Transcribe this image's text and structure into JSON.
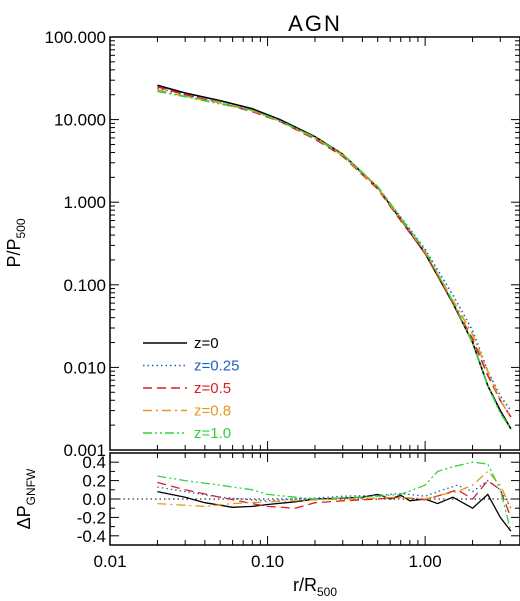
{
  "chart_data": {
    "type": "line",
    "title": "AGN",
    "xlabel": "r/R",
    "xlabel_sub": "500",
    "x_scale": "log",
    "xlim": [
      0.01,
      4.0
    ],
    "x_ticks": [
      {
        "value": 0.01,
        "label": "0.01"
      },
      {
        "value": 0.1,
        "label": "0.10"
      },
      {
        "value": 1.0,
        "label": "1.00"
      }
    ],
    "panels": [
      {
        "id": "main",
        "ylabel": "P/P",
        "ylabel_sub": "500",
        "y_scale": "log",
        "ylim": [
          0.001,
          100
        ],
        "y_ticks": [
          {
            "value": 100,
            "label": "100.000"
          },
          {
            "value": 10,
            "label": "10.000"
          },
          {
            "value": 1,
            "label": "1.000"
          },
          {
            "value": 0.1,
            "label": "0.100"
          },
          {
            "value": 0.01,
            "label": "0.010"
          },
          {
            "value": 0.001,
            "label": "0.001"
          }
        ]
      },
      {
        "id": "residual",
        "ylabel": "ΔP",
        "ylabel_sub": "GNFW",
        "y_scale": "linear",
        "ylim": [
          -0.5,
          0.5
        ],
        "reference_line": 0.0,
        "y_ticks": [
          {
            "value": 0.4,
            "label": "0.4"
          },
          {
            "value": 0.2,
            "label": "0.2"
          },
          {
            "value": 0.0,
            "label": "0.0"
          },
          {
            "value": -0.2,
            "label": "-0.2"
          },
          {
            "value": -0.4,
            "label": "-0.4"
          }
        ]
      }
    ],
    "legend": {
      "placement": "lower-left of main panel"
    },
    "series": [
      {
        "name": "z=0",
        "color": "#000000",
        "dash": "solid",
        "x": [
          0.02,
          0.03,
          0.05,
          0.08,
          0.12,
          0.2,
          0.3,
          0.5,
          0.7,
          1.0,
          1.5,
          2.0,
          2.5,
          3.0,
          3.5
        ],
        "y": [
          26,
          21,
          17,
          13.5,
          10,
          6.2,
          3.8,
          1.5,
          0.62,
          0.24,
          0.06,
          0.02,
          0.006,
          0.003,
          0.0018
        ],
        "residual_x": [
          0.02,
          0.03,
          0.04,
          0.06,
          0.08,
          0.1,
          0.15,
          0.2,
          0.3,
          0.4,
          0.5,
          0.6,
          0.7,
          0.8,
          1.0,
          1.2,
          1.5,
          2.0,
          2.5,
          3.0,
          3.5
        ],
        "residual_y": [
          0.08,
          0.02,
          -0.04,
          -0.09,
          -0.08,
          -0.06,
          -0.03,
          0.0,
          0.01,
          0.02,
          0.05,
          0.0,
          0.04,
          -0.02,
          0.0,
          -0.05,
          0.02,
          -0.1,
          0.05,
          -0.2,
          -0.35
        ]
      },
      {
        "name": "z=0.25",
        "color": "#1f5fc4",
        "dash": "dotted",
        "x": [
          0.02,
          0.03,
          0.05,
          0.08,
          0.12,
          0.2,
          0.3,
          0.5,
          0.7,
          1.0,
          1.5,
          2.0,
          2.5,
          3.0,
          3.5
        ],
        "y": [
          24,
          20,
          16.5,
          13,
          9.8,
          6.0,
          3.7,
          1.5,
          0.66,
          0.27,
          0.075,
          0.028,
          0.009,
          0.0045,
          0.003
        ],
        "residual_x": [
          0.02,
          0.03,
          0.05,
          0.08,
          0.1,
          0.15,
          0.2,
          0.3,
          0.5,
          0.7,
          1.0,
          1.3,
          1.6,
          2.0,
          2.5,
          3.0,
          3.5
        ],
        "residual_y": [
          0.13,
          0.08,
          0.02,
          -0.01,
          -0.02,
          0.0,
          0.01,
          0.03,
          0.04,
          0.06,
          0.03,
          0.1,
          0.15,
          0.08,
          0.2,
          0.1,
          -0.1
        ]
      },
      {
        "name": "z=0.5",
        "color": "#d62020",
        "dash": "dashed",
        "x": [
          0.02,
          0.03,
          0.05,
          0.08,
          0.12,
          0.2,
          0.3,
          0.5,
          0.7,
          1.0,
          1.5,
          2.0,
          2.5,
          3.0,
          3.5
        ],
        "y": [
          25,
          20,
          16,
          12.5,
          9.5,
          5.8,
          3.6,
          1.45,
          0.6,
          0.24,
          0.06,
          0.022,
          0.008,
          0.004,
          0.0025
        ],
        "residual_x": [
          0.02,
          0.03,
          0.05,
          0.08,
          0.1,
          0.15,
          0.2,
          0.3,
          0.5,
          0.7,
          1.0,
          1.3,
          1.6,
          2.0,
          2.5,
          3.0,
          3.5
        ],
        "residual_y": [
          0.18,
          0.1,
          0.02,
          -0.05,
          -0.08,
          -0.1,
          -0.04,
          -0.02,
          0.0,
          0.02,
          -0.01,
          0.05,
          0.1,
          0.0,
          0.2,
          0.1,
          -0.2
        ]
      },
      {
        "name": "z=0.8",
        "color": "#e39a1a",
        "dash": "dashdot",
        "x": [
          0.02,
          0.03,
          0.05,
          0.08,
          0.12,
          0.2,
          0.3,
          0.5,
          0.7,
          1.0,
          1.5,
          2.0,
          2.5,
          3.0,
          3.5
        ],
        "y": [
          23,
          19,
          16,
          12.8,
          9.6,
          6.0,
          3.7,
          1.5,
          0.63,
          0.25,
          0.065,
          0.025,
          0.009,
          0.004,
          0.0025
        ],
        "residual_x": [
          0.02,
          0.04,
          0.06,
          0.1,
          0.15,
          0.2,
          0.3,
          0.5,
          0.7,
          1.0,
          1.3,
          1.6,
          2.0,
          2.5,
          3.0,
          3.5
        ],
        "residual_y": [
          -0.05,
          -0.08,
          -0.05,
          -0.03,
          -0.02,
          -0.01,
          0.0,
          0.01,
          0.02,
          0.0,
          0.05,
          0.08,
          0.15,
          0.3,
          0.15,
          -0.1
        ]
      },
      {
        "name": "z=1.0",
        "color": "#35d13a",
        "dash": "dashdotdot",
        "x": [
          0.02,
          0.03,
          0.05,
          0.08,
          0.12,
          0.2,
          0.3,
          0.5,
          0.7,
          1.0,
          1.5,
          2.0,
          2.5,
          3.0,
          3.5
        ],
        "y": [
          22,
          19,
          15.5,
          13,
          9.6,
          6.1,
          3.8,
          1.55,
          0.65,
          0.26,
          0.062,
          0.02,
          0.006,
          0.0028,
          0.0018
        ],
        "residual_x": [
          0.02,
          0.03,
          0.05,
          0.08,
          0.1,
          0.15,
          0.2,
          0.3,
          0.5,
          0.7,
          1.0,
          1.2,
          1.5,
          2.0,
          2.5,
          3.0,
          3.5
        ],
        "residual_y": [
          0.25,
          0.2,
          0.15,
          0.1,
          0.05,
          0.02,
          0.0,
          0.01,
          0.03,
          0.05,
          0.15,
          0.3,
          0.35,
          0.4,
          0.38,
          0.1,
          -0.35
        ]
      }
    ]
  }
}
